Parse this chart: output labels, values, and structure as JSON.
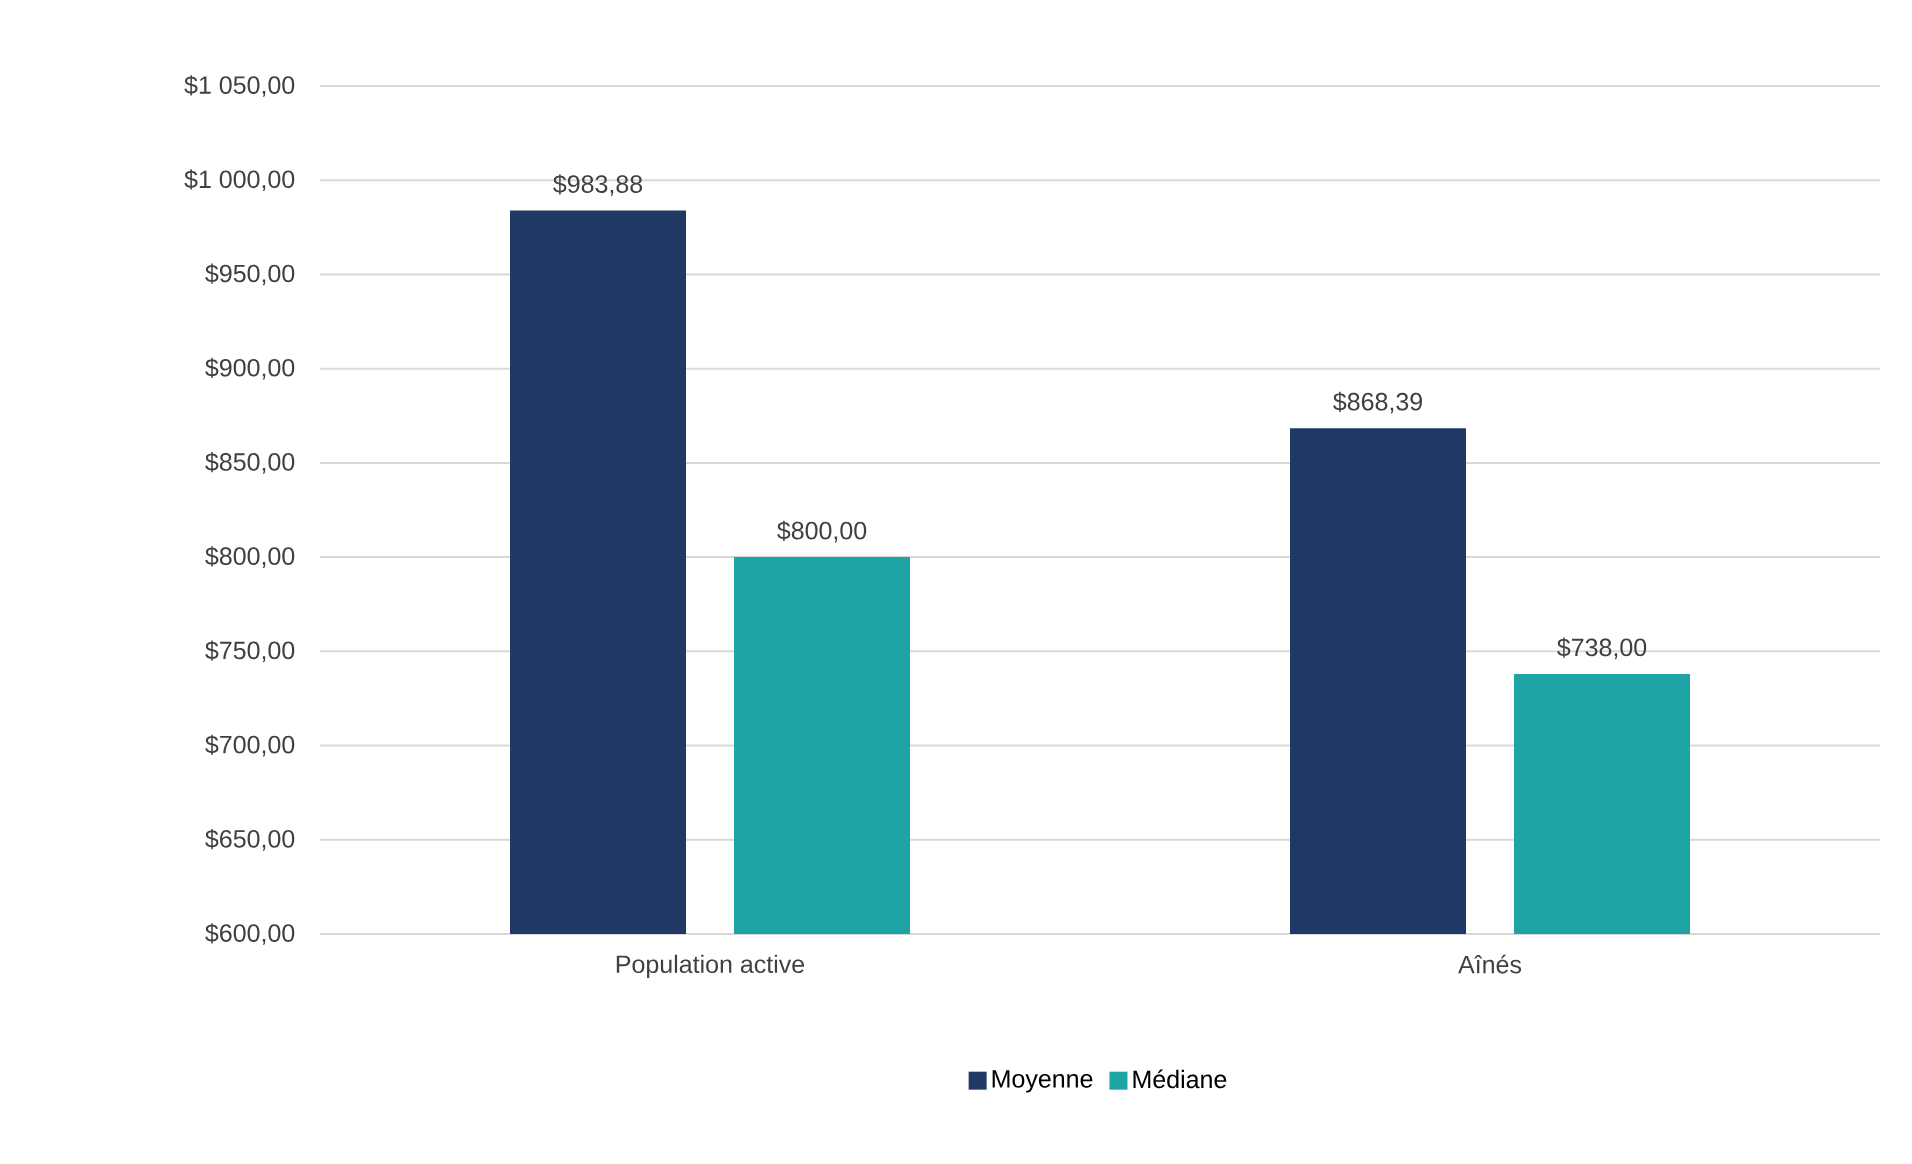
{
  "chart_data": {
    "type": "bar",
    "categories": [
      "Population active",
      "Aînés"
    ],
    "series": [
      {
        "name": "Moyenne",
        "color": "#203864",
        "values": [
          983.88,
          868.39
        ],
        "value_labels": [
          "$983,88",
          "$868,39"
        ]
      },
      {
        "name": "Médiane",
        "color": "#1fa4a6",
        "values": [
          800.0,
          738.0
        ],
        "value_labels": [
          "$800,00",
          "$738,00"
        ]
      }
    ],
    "ylim": [
      600,
      1050
    ],
    "yticks": [
      {
        "value": 600,
        "label": "$600,00"
      },
      {
        "value": 650,
        "label": "$650,00"
      },
      {
        "value": 700,
        "label": "$700,00"
      },
      {
        "value": 750,
        "label": "$750,00"
      },
      {
        "value": 800,
        "label": "$800,00"
      },
      {
        "value": 850,
        "label": "$850,00"
      },
      {
        "value": 900,
        "label": "$900,00"
      },
      {
        "value": 950,
        "label": "$950,00"
      },
      {
        "value": 1000,
        "label": "$1 000,00"
      },
      {
        "value": 1050,
        "label": "$1 050,00"
      }
    ],
    "grid": "y",
    "legend": "bottom"
  }
}
